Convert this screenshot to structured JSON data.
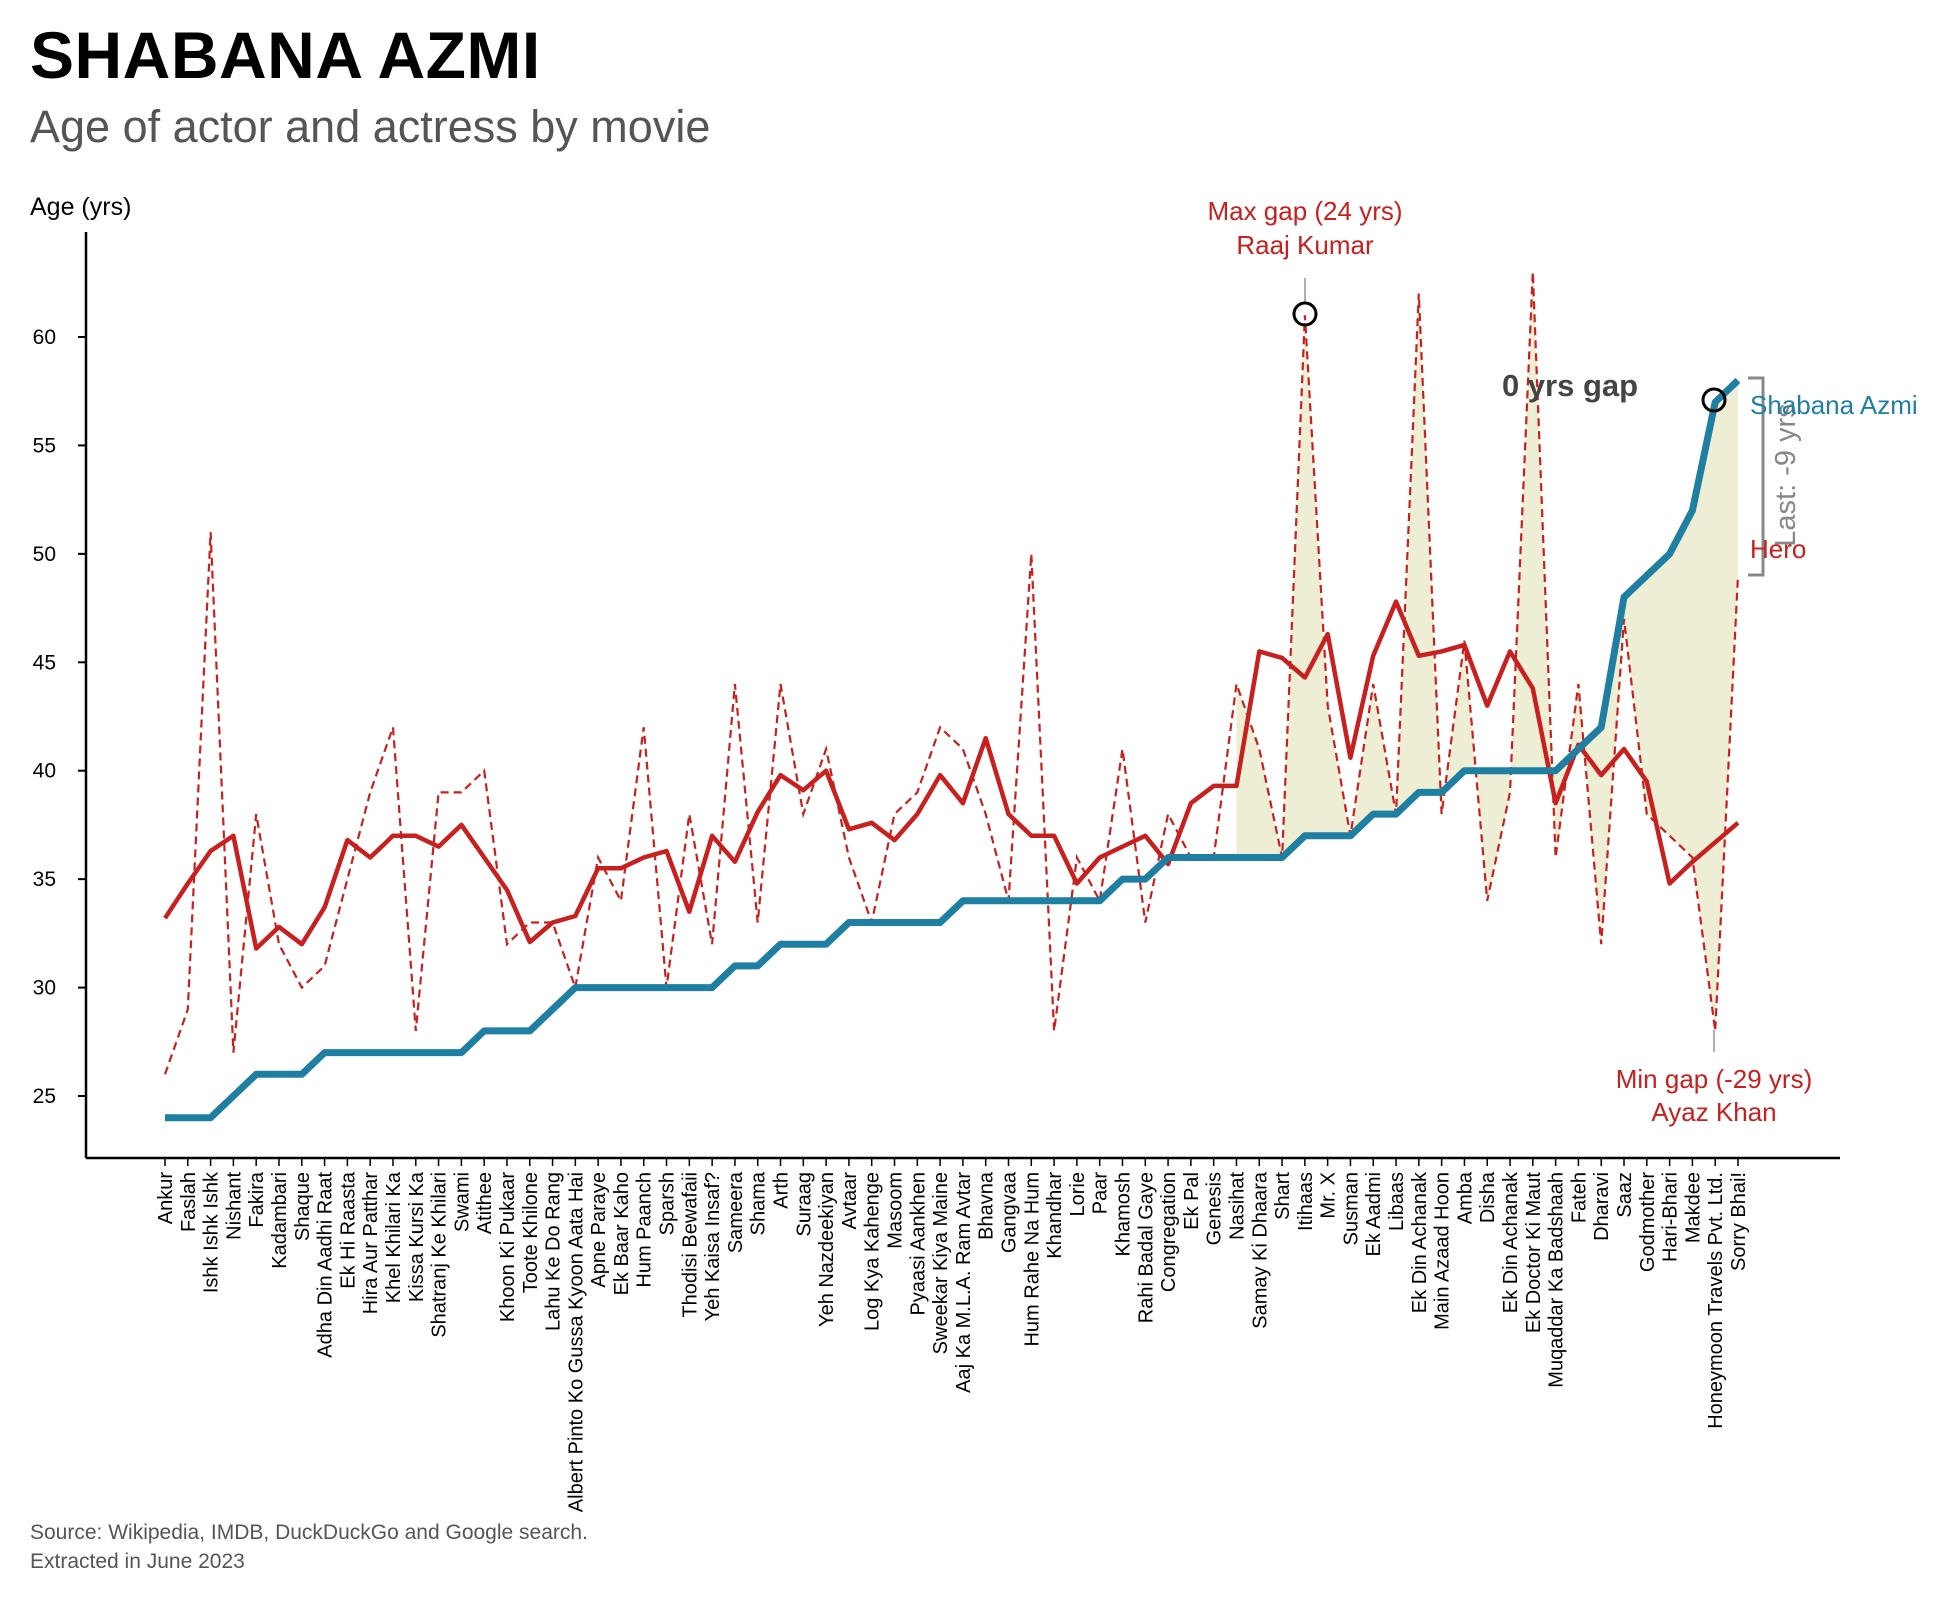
{
  "header": {
    "title": "SHABANA AZMI",
    "subtitle": "Age of actor and actress by movie"
  },
  "footer": {
    "source_line1": "Source: Wikipedia, IMDB, DuckDuckGo and Google search.",
    "source_line2": "Extracted in June 2023"
  },
  "colors": {
    "actress": "#1f7fa3",
    "hero": "#c8201f",
    "gap_fill": "#eeeed5"
  },
  "chart_data": {
    "type": "line",
    "title": "SHABANA AZMI",
    "subtitle": "Age of actor and actress by movie",
    "ylabel": "Age (yrs)",
    "ylim": [
      22,
      65
    ],
    "yticks": [
      25,
      30,
      35,
      40,
      45,
      50,
      55,
      60
    ],
    "grid": false,
    "categories": [
      "Ankur",
      "Faslah",
      "Ishk Ishk Ishk",
      "Nishant",
      "Fakira",
      "Kadambari",
      "Shaque",
      "Adha Din Aadhi Raat",
      "Ek Hi Raasta",
      "Hira Aur Patthar",
      "Khel Khilari Ka",
      "Kissa Kursi Ka",
      "Shatranj Ke Khilari",
      "Swami",
      "Atithee",
      "Khoon Ki Pukaar",
      "Toote Khilone",
      "Lahu Ke Do Rang",
      "Albert Pinto Ko Gussa Kyoon Aata Hai",
      "Apne Paraye",
      "Ek Baar Kaho",
      "Hum Paanch",
      "Sparsh",
      "Thodisi Bewafaii",
      "Yeh Kaisa Insaf?",
      "Sameera",
      "Shama",
      "Arth",
      "Suraag",
      "Yeh Nazdeekiyan",
      "Avtaar",
      "Log Kya Kahenge",
      "Masoom",
      "Pyaasi Aankhen",
      "Sweekar Kiya Maine",
      "Aaj Ka M.L.A. Ram Avtar",
      "Bhavna",
      "Gangvaa",
      "Hum Rahe Na Hum",
      "Khandhar",
      "Lorie",
      "Paar",
      "Khamosh",
      "Rahi Badal Gaye",
      "Congregation",
      "Ek Pal",
      "Genesis",
      "Nasihat",
      "Samay Ki Dhaara",
      "Shart",
      "Itihaas",
      "Mr. X",
      "Susman",
      "Ek Aadmi",
      "Libaas",
      "Ek Din Achanak",
      "Main Azaad Hoon",
      "Amba",
      "Disha",
      "Ek Din Achanak",
      "Ek Doctor Ki Maut",
      "Muqaddar Ka Badshaah",
      "Fateh",
      "Dharavi",
      "Saaz",
      "Godmother",
      "Hari-Bhari",
      "Makdee",
      "Honeymoon Travels Pvt. Ltd.",
      "Sorry Bhai!"
    ],
    "series": [
      {
        "name": "Shabana Azmi",
        "style": "solid-thick",
        "values": [
          24,
          24,
          24,
          25,
          26,
          26,
          26,
          27,
          27,
          27,
          27,
          27,
          27,
          27,
          28,
          28,
          28,
          29,
          30,
          30,
          30,
          30,
          30,
          30,
          30,
          31,
          31,
          32,
          32,
          32,
          33,
          33,
          33,
          33,
          33,
          34,
          34,
          34,
          34,
          34,
          34,
          34,
          35,
          35,
          36,
          36,
          36,
          36,
          36,
          36,
          37,
          37,
          37,
          38,
          38,
          39,
          39,
          40,
          40,
          40,
          40,
          40,
          41,
          42,
          48,
          49,
          50,
          52,
          57,
          58
        ]
      },
      {
        "name": "Hero",
        "style": "dashed",
        "values": [
          26,
          29,
          51,
          27,
          38,
          32,
          30,
          31,
          35,
          39,
          42,
          28,
          39,
          39,
          40,
          32,
          33,
          33,
          30,
          36,
          34,
          42,
          30,
          38,
          32,
          44,
          33,
          44,
          38,
          41,
          36,
          33,
          38,
          39,
          42,
          41,
          38,
          34,
          50,
          28,
          36,
          34,
          41,
          33,
          38,
          36,
          36,
          44,
          41,
          36,
          61,
          43,
          37,
          44,
          38,
          62,
          38,
          46,
          34,
          39,
          63,
          36,
          44,
          32,
          47,
          38,
          37,
          36,
          28,
          49
        ]
      },
      {
        "name": "Hero",
        "style": "solid-rolling",
        "values": [
          33.2,
          34.8,
          36.3,
          37.0,
          31.8,
          32.8,
          32.0,
          33.7,
          36.8,
          36.0,
          37.0,
          37.0,
          36.5,
          37.5,
          36.0,
          34.5,
          32.1,
          33.0,
          33.3,
          35.5,
          35.5,
          36.0,
          36.3,
          33.5,
          37.0,
          35.8,
          38.1,
          39.8,
          39.1,
          40.0,
          37.3,
          37.6,
          36.8,
          38.0,
          39.8,
          38.5,
          41.5,
          38.0,
          37.0,
          37.0,
          34.8,
          36.0,
          36.5,
          37.0,
          35.7,
          38.5,
          39.3,
          39.3,
          45.5,
          45.2,
          44.3,
          46.3,
          40.6,
          45.3,
          47.8,
          45.3,
          45.5,
          45.8,
          43.0,
          45.5,
          43.8,
          38.5,
          41.2,
          39.8,
          41.0,
          39.5,
          34.8,
          35.8,
          36.7,
          37.6
        ]
      }
    ],
    "legend": [
      {
        "label": "Shabana Azmi",
        "placement": "right, end of actress line"
      },
      {
        "label": "Hero",
        "placement": "right, end of hero line"
      }
    ],
    "annotations": {
      "max_gap": {
        "line1": "Max gap (24 yrs)",
        "line2": "Raaj Kumar",
        "movie": "Itihaas",
        "age": 61
      },
      "min_gap": {
        "line1": "Min gap (-29 yrs)",
        "line2": "Ayaz Khan",
        "movie": "Honeymoon Travels Pvt. Ltd.",
        "age": 28
      },
      "zero_gap": {
        "text": "0 yrs gap",
        "movie": "Honeymoon Travels Pvt. Ltd.",
        "age": 57
      },
      "last": {
        "text": "Last: -9 yrs"
      }
    }
  }
}
